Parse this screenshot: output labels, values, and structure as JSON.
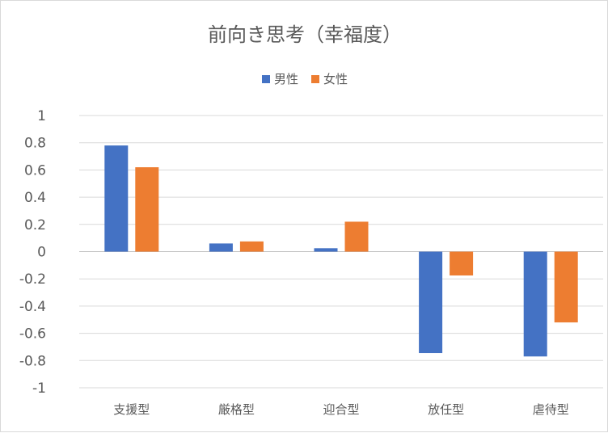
{
  "chart_data": {
    "type": "bar",
    "title": "前向き思考（幸福度）",
    "categories": [
      "支援型",
      "厳格型",
      "迎合型",
      "放任型",
      "虐待型"
    ],
    "series": [
      {
        "name": "男性",
        "color": "#4472c4",
        "values": [
          0.78,
          0.06,
          0.025,
          -0.745,
          -0.77
        ]
      },
      {
        "name": "女性",
        "color": "#ed7d31",
        "values": [
          0.62,
          0.075,
          0.22,
          -0.175,
          -0.52
        ]
      }
    ],
    "yticks": [
      "1",
      "0.8",
      "0.6",
      "0.4",
      "0.2",
      "0",
      "-0.2",
      "-0.4",
      "-0.6",
      "-0.8",
      "-1"
    ],
    "ylim": [
      -1,
      1
    ],
    "grid": true,
    "legend": "top-center"
  }
}
